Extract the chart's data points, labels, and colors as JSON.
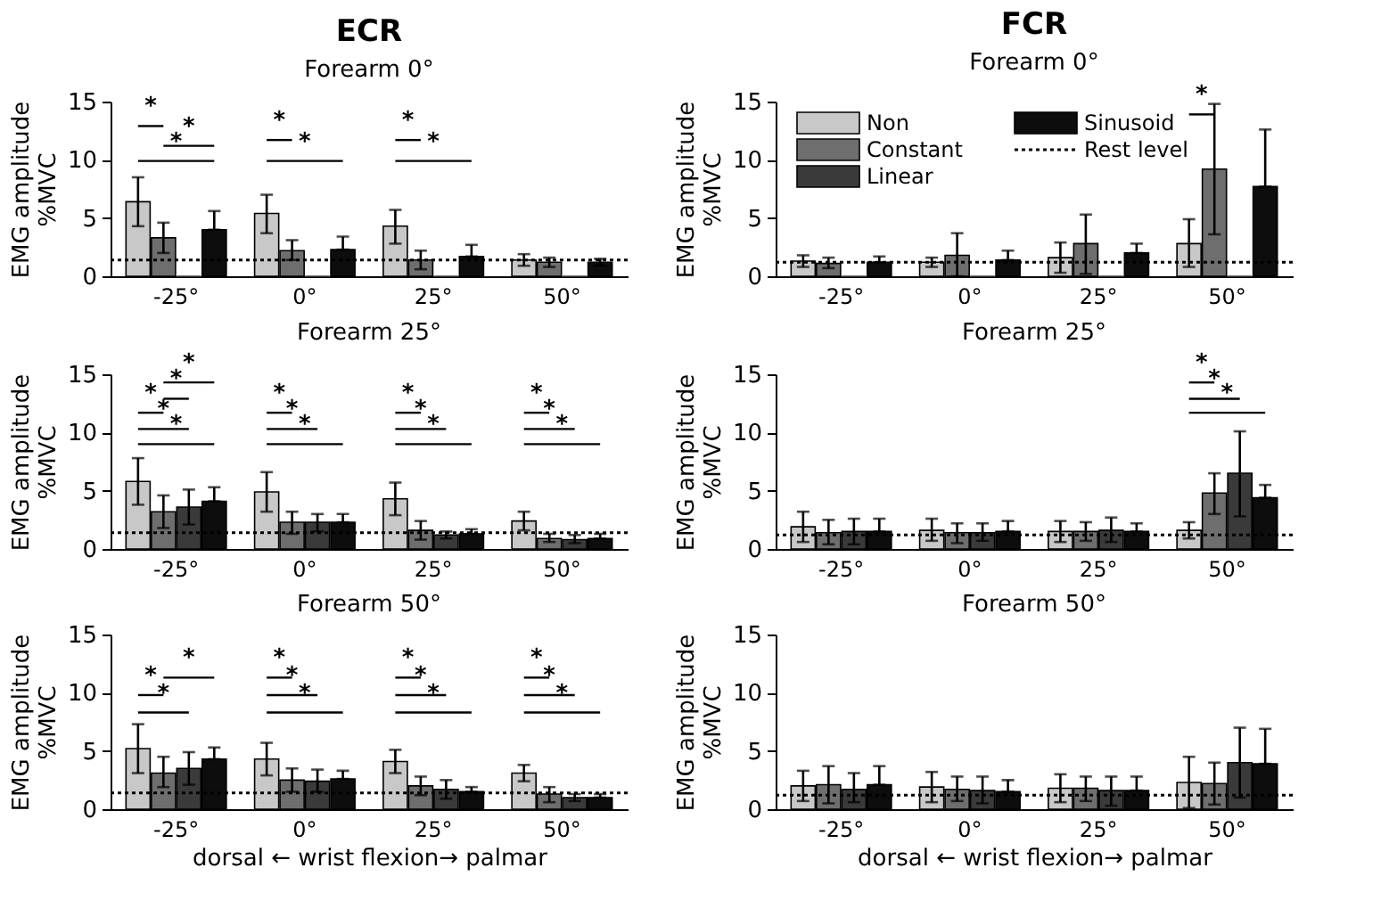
{
  "chart_data": [
    {
      "type": "bar",
      "title": "Forearm 0°",
      "ylabel": "EMG amplitude\n%MVC",
      "categories": [
        "-25°",
        "0°",
        "25°",
        "50°"
      ],
      "ylim": [
        0,
        15
      ],
      "yticks": [
        0,
        5,
        10,
        15
      ],
      "legend": false,
      "annotations": [
        "ECR",
        "*",
        "*",
        "*",
        "*",
        "*",
        "*",
        "*"
      ],
      "ref_lines": [
        {
          "axis": "y",
          "value": 1.4,
          "line_style": "dotted"
        }
      ],
      "series": [
        {
          "color": "#c8c8c8",
          "values": [
            6.4,
            5.4,
            4.3,
            1.4
          ],
          "errors": [
            [
              4.3,
              8.5
            ],
            [
              3.7,
              7.0
            ],
            [
              2.8,
              5.7
            ],
            [
              0.9,
              1.9
            ]
          ]
        },
        {
          "color": "#6e6e6e",
          "values": [
            3.3,
            2.2,
            1.4,
            1.2
          ],
          "errors": [
            [
              2.0,
              4.6
            ],
            [
              1.4,
              3.1
            ],
            [
              0.6,
              2.2
            ],
            [
              0.8,
              1.6
            ]
          ]
        },
        {
          "color": "#3a3a3a",
          "values": [
            0,
            0,
            0,
            0
          ]
        },
        {
          "color": "#0d0d0d",
          "values": [
            4.0,
            2.3,
            1.7,
            1.2
          ],
          "errors": [
            [
              4.0,
              5.6
            ],
            [
              2.3,
              3.4
            ],
            [
              1.7,
              2.7
            ],
            [
              0.9,
              1.5
            ]
          ]
        }
      ]
    },
    {
      "type": "bar",
      "title": "Forearm 25°",
      "ylabel": "EMG amplitude\n%MVC",
      "categories": [
        "-25°",
        "0°",
        "25°",
        "50°"
      ],
      "ylim": [
        0,
        15
      ],
      "yticks": [
        0,
        5,
        10,
        15
      ],
      "legend": false,
      "annotations": [
        "*",
        "*",
        "*",
        "*",
        "*",
        "*",
        "*",
        "*",
        "*",
        "*",
        "*",
        "*",
        "*",
        "*"
      ],
      "ref_lines": [
        {
          "axis": "y",
          "value": 1.4,
          "line_style": "dotted"
        }
      ],
      "series": [
        {
          "color": "#c8c8c8",
          "values": [
            5.8,
            4.9,
            4.3,
            2.4
          ],
          "errors": [
            [
              3.8,
              7.8
            ],
            [
              3.2,
              6.6
            ],
            [
              2.9,
              5.7
            ],
            [
              1.6,
              3.2
            ]
          ]
        },
        {
          "color": "#6e6e6e",
          "values": [
            3.2,
            2.3,
            1.6,
            0.9
          ],
          "errors": [
            [
              1.8,
              4.6
            ],
            [
              1.3,
              3.2
            ],
            [
              0.8,
              2.4
            ],
            [
              0.6,
              1.3
            ]
          ]
        },
        {
          "color": "#3a3a3a",
          "values": [
            3.6,
            2.3,
            1.2,
            0.8
          ],
          "errors": [
            [
              2.1,
              5.1
            ],
            [
              1.5,
              3.0
            ],
            [
              0.9,
              1.5
            ],
            [
              0.5,
              1.2
            ]
          ]
        },
        {
          "color": "#0d0d0d",
          "values": [
            4.1,
            2.3,
            1.3,
            0.9
          ],
          "errors": [
            [
              4.1,
              5.3
            ],
            [
              2.3,
              3.0
            ],
            [
              1.3,
              1.7
            ],
            [
              0.9,
              1.3
            ]
          ]
        }
      ]
    },
    {
      "type": "bar",
      "title": "Forearm 50°",
      "ylabel": "EMG amplitude\n%MVC",
      "xlabel": "dorsal ← wrist flexion→ palmar",
      "categories": [
        "-25°",
        "0°",
        "25°",
        "50°"
      ],
      "ylim": [
        0,
        15
      ],
      "yticks": [
        0,
        5,
        10,
        15
      ],
      "legend": false,
      "annotations": [
        "*",
        "*",
        "*",
        "*",
        "*",
        "*",
        "*",
        "*",
        "*",
        "*",
        "*",
        "*"
      ],
      "ref_lines": [
        {
          "axis": "y",
          "value": 1.4,
          "line_style": "dotted"
        }
      ],
      "series": [
        {
          "color": "#c8c8c8",
          "values": [
            5.2,
            4.3,
            4.1,
            3.1
          ],
          "errors": [
            [
              3.1,
              7.3
            ],
            [
              2.9,
              5.7
            ],
            [
              3.1,
              5.1
            ],
            [
              2.4,
              3.8
            ]
          ]
        },
        {
          "color": "#6e6e6e",
          "values": [
            3.1,
            2.5,
            2.0,
            1.3
          ],
          "errors": [
            [
              1.9,
              4.5
            ],
            [
              1.5,
              3.5
            ],
            [
              1.2,
              2.8
            ],
            [
              0.6,
              1.9
            ]
          ]
        },
        {
          "color": "#3a3a3a",
          "values": [
            3.5,
            2.4,
            1.7,
            1.0
          ],
          "errors": [
            [
              2.1,
              4.9
            ],
            [
              1.5,
              3.4
            ],
            [
              0.9,
              2.5
            ],
            [
              0.7,
              1.3
            ]
          ]
        },
        {
          "color": "#0d0d0d",
          "values": [
            4.3,
            2.6,
            1.5,
            1.0
          ],
          "errors": [
            [
              4.3,
              5.3
            ],
            [
              2.6,
              3.3
            ],
            [
              1.5,
              1.9
            ],
            [
              1.0,
              1.3
            ]
          ]
        }
      ]
    },
    {
      "type": "bar",
      "title": "Forearm 0°",
      "ylabel": "EMG amplitude\n%MVC",
      "categories": [
        "-25°",
        "0°",
        "25°",
        "50°"
      ],
      "ylim": [
        0,
        15
      ],
      "yticks": [
        0,
        5,
        10,
        15
      ],
      "legend": "top left",
      "annotations": [
        "FCR",
        "*"
      ],
      "ref_lines": [
        {
          "axis": "y",
          "value": 1.2,
          "label": "Rest level",
          "line_style": "dotted"
        }
      ],
      "series": [
        {
          "name": "Non",
          "color": "#c8c8c8",
          "values": [
            1.3,
            1.2,
            1.6,
            2.8
          ],
          "errors": [
            [
              0.8,
              1.8
            ],
            [
              0.8,
              1.6
            ],
            [
              0.3,
              2.9
            ],
            [
              0.8,
              4.9
            ]
          ]
        },
        {
          "name": "Constant",
          "color": "#6e6e6e",
          "values": [
            1.1,
            1.8,
            2.8,
            9.2
          ],
          "errors": [
            [
              0.7,
              1.6
            ],
            [
              0.0,
              3.7
            ],
            [
              0.2,
              5.3
            ],
            [
              3.6,
              14.8
            ]
          ]
        },
        {
          "name": "Linear",
          "color": "#3a3a3a",
          "values": [
            0,
            0,
            0,
            0
          ]
        },
        {
          "name": "Sinusoid",
          "color": "#0d0d0d",
          "values": [
            1.2,
            1.4,
            2.0,
            7.7
          ],
          "errors": [
            [
              1.2,
              1.7
            ],
            [
              1.4,
              2.2
            ],
            [
              2.0,
              2.8
            ],
            [
              7.7,
              12.6
            ]
          ]
        }
      ]
    },
    {
      "type": "bar",
      "title": "Forearm 25°",
      "ylabel": "EMG amplitude\n%MVC",
      "categories": [
        "-25°",
        "0°",
        "25°",
        "50°"
      ],
      "ylim": [
        0,
        15
      ],
      "yticks": [
        0,
        5,
        10,
        15
      ],
      "legend": false,
      "annotations": [
        "*",
        "*",
        "*"
      ],
      "ref_lines": [
        {
          "axis": "y",
          "value": 1.2,
          "line_style": "dotted"
        }
      ],
      "series": [
        {
          "color": "#c8c8c8",
          "values": [
            1.9,
            1.6,
            1.5,
            1.6
          ],
          "errors": [
            [
              0.6,
              3.2
            ],
            [
              0.7,
              2.6
            ],
            [
              0.6,
              2.4
            ],
            [
              0.9,
              2.3
            ]
          ]
        },
        {
          "color": "#6e6e6e",
          "values": [
            1.4,
            1.4,
            1.5,
            4.8
          ],
          "errors": [
            [
              0.4,
              2.5
            ],
            [
              0.5,
              2.2
            ],
            [
              0.7,
              2.3
            ],
            [
              3.0,
              6.5
            ]
          ]
        },
        {
          "color": "#3a3a3a",
          "values": [
            1.5,
            1.4,
            1.6,
            6.5
          ],
          "errors": [
            [
              0.4,
              2.6
            ],
            [
              0.7,
              2.2
            ],
            [
              0.6,
              2.7
            ],
            [
              2.8,
              10.1
            ]
          ]
        },
        {
          "color": "#0d0d0d",
          "values": [
            1.5,
            1.5,
            1.5,
            4.4
          ],
          "errors": [
            [
              1.5,
              2.6
            ],
            [
              1.5,
              2.4
            ],
            [
              1.5,
              2.2
            ],
            [
              4.4,
              5.5
            ]
          ]
        }
      ]
    },
    {
      "type": "bar",
      "title": "Forearm 50°",
      "ylabel": "EMG amplitude\n%MVC",
      "xlabel": "dorsal ← wrist flexion→ palmar",
      "categories": [
        "-25°",
        "0°",
        "25°",
        "50°"
      ],
      "ylim": [
        0,
        15
      ],
      "yticks": [
        0,
        5,
        10,
        15
      ],
      "legend": false,
      "ref_lines": [
        {
          "axis": "y",
          "value": 1.2,
          "line_style": "dotted"
        }
      ],
      "series": [
        {
          "color": "#c8c8c8",
          "values": [
            2.0,
            1.9,
            1.8,
            2.3
          ],
          "errors": [
            [
              0.7,
              3.3
            ],
            [
              0.6,
              3.2
            ],
            [
              0.6,
              3.0
            ],
            [
              0.1,
              4.5
            ]
          ]
        },
        {
          "color": "#6e6e6e",
          "values": [
            2.1,
            1.7,
            1.8,
            2.2
          ],
          "errors": [
            [
              0.5,
              3.7
            ],
            [
              0.7,
              2.8
            ],
            [
              0.7,
              2.8
            ],
            [
              0.4,
              4.0
            ]
          ]
        },
        {
          "color": "#3a3a3a",
          "values": [
            1.7,
            1.6,
            1.6,
            4.0
          ],
          "errors": [
            [
              0.6,
              3.1
            ],
            [
              0.5,
              2.8
            ],
            [
              0.3,
              2.8
            ],
            [
              1.0,
              7.0
            ]
          ]
        },
        {
          "color": "#0d0d0d",
          "values": [
            2.1,
            1.5,
            1.6,
            3.9
          ],
          "errors": [
            [
              2.1,
              3.7
            ],
            [
              1.5,
              2.5
            ],
            [
              1.6,
              2.8
            ],
            [
              3.9,
              6.9
            ]
          ]
        }
      ]
    }
  ]
}
